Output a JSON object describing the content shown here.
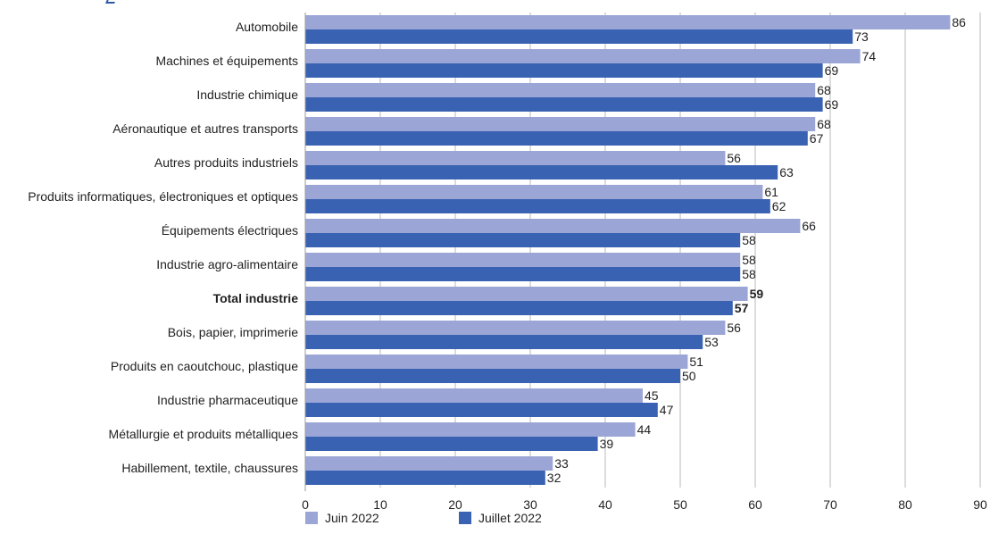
{
  "chart_data": {
    "type": "bar",
    "orientation": "horizontal",
    "categories": [
      "Automobile",
      "Machines et équipements",
      "Industrie chimique",
      "Aéronautique et autres transports",
      "Autres produits industriels",
      "Produits informatiques, électroniques et optiques",
      "Équipements électriques",
      "Industrie agro-alimentaire",
      "Total industrie",
      "Bois, papier, imprimerie",
      "Produits en caoutchouc, plastique",
      "Industrie pharmaceutique",
      "Métallurgie et produits métalliques",
      "Habillement, textile, chaussures"
    ],
    "highlight_category": "Total industrie",
    "series": [
      {
        "name": "Juin 2022",
        "color": "#9ba6d6",
        "values": [
          86,
          74,
          68,
          68,
          56,
          61,
          66,
          58,
          59,
          56,
          51,
          45,
          44,
          33
        ]
      },
      {
        "name": "Juillet 2022",
        "color": "#3a62b2",
        "values": [
          73,
          69,
          69,
          67,
          63,
          62,
          58,
          58,
          57,
          53,
          50,
          47,
          39,
          32
        ]
      }
    ],
    "xlim": [
      0,
      90
    ],
    "xticks": [
      "0",
      "10",
      "20",
      "30",
      "40",
      "50",
      "60",
      "70",
      "80",
      "90"
    ],
    "grid": true,
    "legend_position": "bottom-left"
  }
}
